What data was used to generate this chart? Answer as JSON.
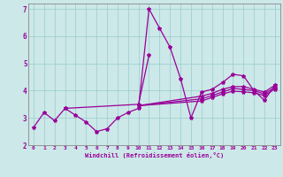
{
  "background_color": "#cce8e8",
  "line_color": "#990099",
  "grid_color": "#99cccc",
  "xlabel": "Windchill (Refroidissement éolien,°C)",
  "xlabel_color": "#990099",
  "ylim": [
    2,
    7.2
  ],
  "xlim": [
    -0.5,
    23.5
  ],
  "yticks": [
    2,
    3,
    4,
    5,
    6,
    7
  ],
  "xticks": [
    0,
    1,
    2,
    3,
    4,
    5,
    6,
    7,
    8,
    9,
    10,
    11,
    12,
    13,
    14,
    15,
    16,
    17,
    18,
    19,
    20,
    21,
    22,
    23
  ],
  "series0": [
    2.65,
    3.2,
    2.9,
    3.35,
    3.1,
    2.85,
    2.5,
    2.6,
    3.0,
    3.2,
    3.35,
    7.0,
    6.3,
    5.6,
    4.45,
    3.0,
    3.95,
    4.05,
    4.3,
    4.6,
    4.55,
    4.0,
    3.65,
    4.2
  ],
  "series1_x": [
    3,
    10,
    11
  ],
  "series1_y": [
    3.35,
    3.5,
    5.3
  ],
  "series2_x": [
    10,
    16,
    17,
    18,
    19,
    20,
    21,
    22,
    23
  ],
  "series2_y": [
    3.45,
    3.8,
    3.9,
    4.05,
    4.15,
    4.15,
    4.05,
    3.95,
    4.2
  ],
  "series3_x": [
    10,
    16,
    17,
    18,
    19,
    20,
    21,
    22,
    23
  ],
  "series3_y": [
    3.45,
    3.7,
    3.82,
    3.95,
    4.08,
    4.05,
    4.0,
    3.88,
    4.12
  ],
  "series4_x": [
    10,
    16,
    17,
    18,
    19,
    20,
    21,
    22,
    23
  ],
  "series4_y": [
    3.45,
    3.62,
    3.75,
    3.88,
    3.98,
    3.96,
    3.92,
    3.82,
    4.06
  ]
}
